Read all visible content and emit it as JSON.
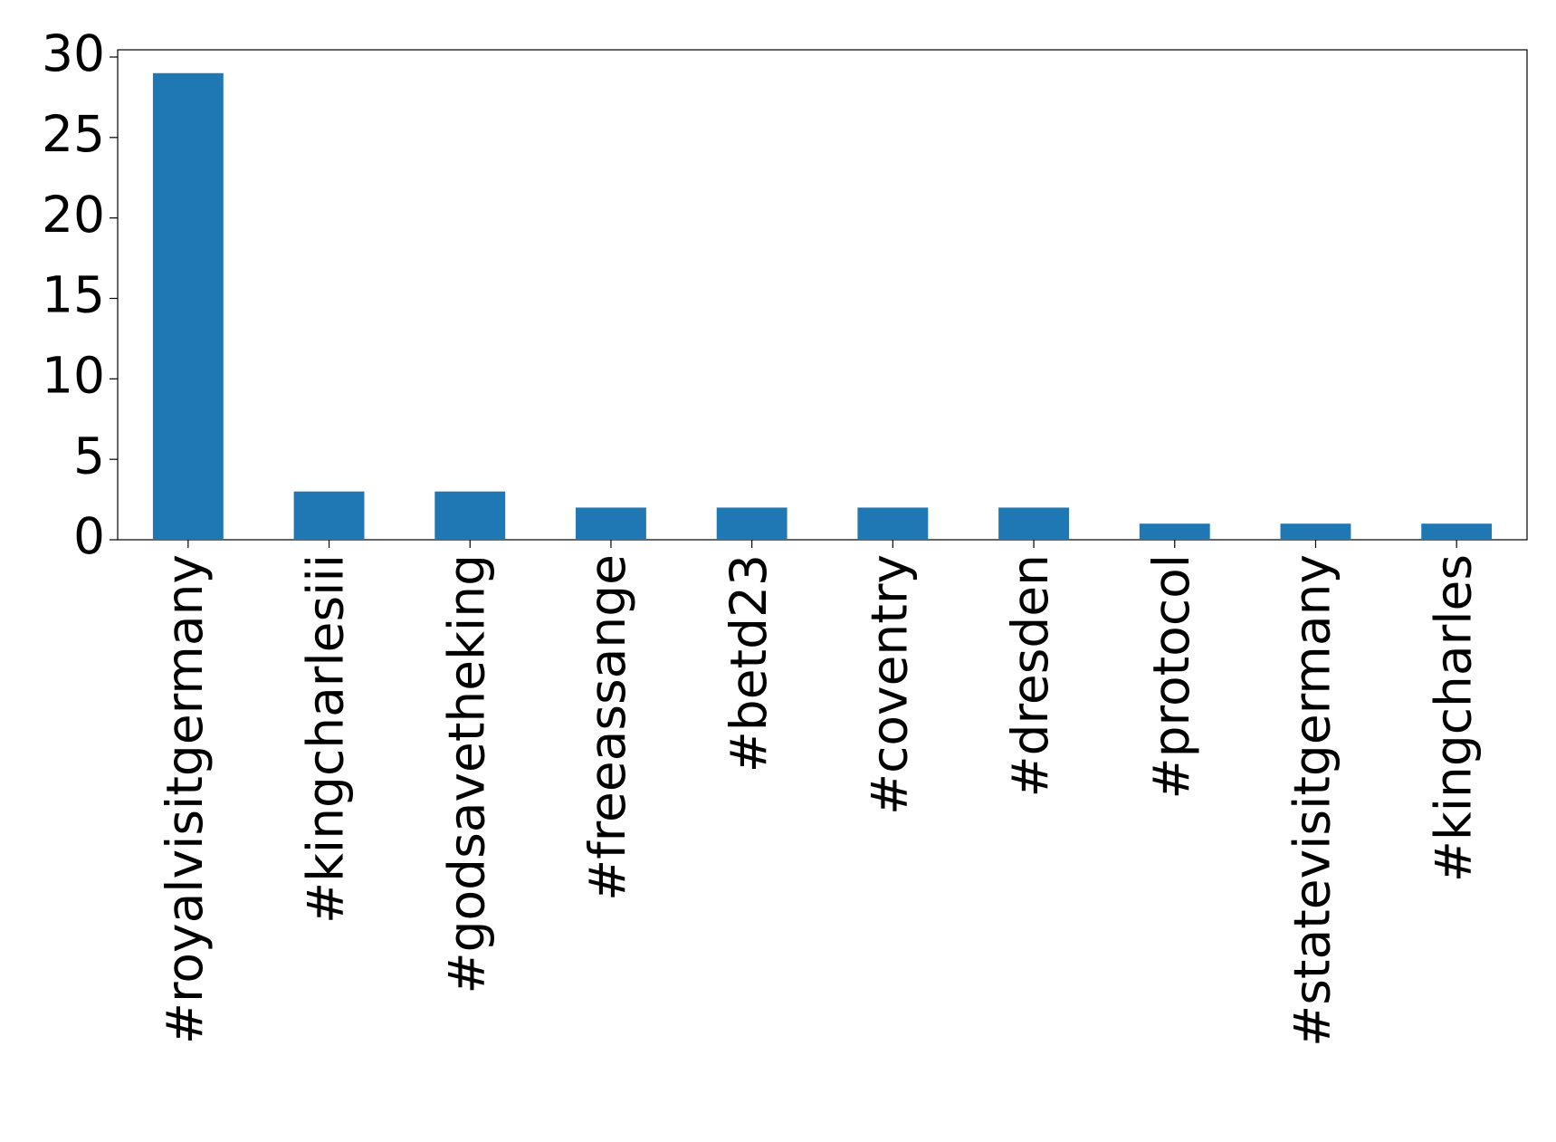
{
  "chart_data": {
    "type": "bar",
    "categories": [
      "#royalvisitgermany",
      "#kingcharlesiii",
      "#godsavetheking",
      "#freeassange",
      "#betd23",
      "#coventry",
      "#dresden",
      "#protocol",
      "#statevisitgermany",
      "#kingcharles"
    ],
    "values": [
      29,
      3,
      3,
      2,
      2,
      2,
      2,
      1,
      1,
      1
    ],
    "color": "#1f77b4",
    "ylim": [
      0,
      30.45
    ],
    "yticks": [
      0,
      5,
      10,
      15,
      20,
      25,
      30
    ],
    "grid": false
  }
}
